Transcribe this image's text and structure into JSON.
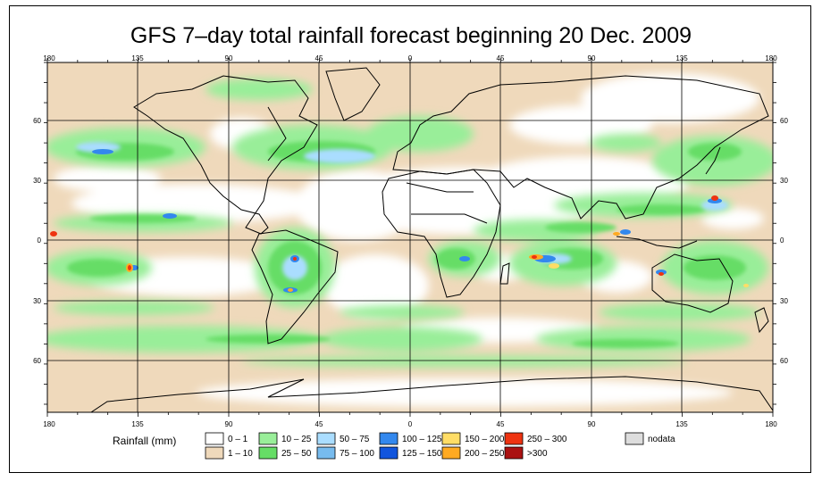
{
  "title": "GFS 7–day total rainfall forecast beginning 20 Dec. 2009",
  "axes": {
    "lon_ticks": [
      "180",
      "135",
      "90",
      "45",
      "0",
      "45",
      "90",
      "135",
      "180"
    ],
    "lat_ticks": [
      "60",
      "30",
      "0",
      "30",
      "60"
    ]
  },
  "legend": {
    "title": "Rainfall (mm)",
    "items": [
      {
        "label": "0 – 1",
        "color": "#ffffff"
      },
      {
        "label": "1 – 10",
        "color": "#efd9bb"
      },
      {
        "label": "10 – 25",
        "color": "#99ee99"
      },
      {
        "label": "25 – 50",
        "color": "#66dd66"
      },
      {
        "label": "50 – 75",
        "color": "#aaddff"
      },
      {
        "label": "75 – 100",
        "color": "#77bbee"
      },
      {
        "label": "100 – 125",
        "color": "#3388ee"
      },
      {
        "label": "125 – 150",
        "color": "#1155dd"
      },
      {
        "label": "150 – 200",
        "color": "#ffdd66"
      },
      {
        "label": "200 – 250",
        "color": "#ffaa22"
      },
      {
        "label": "250 – 300",
        "color": "#ee3311"
      },
      {
        "label": ">300",
        "color": "#aa1111"
      },
      {
        "label": "nodata",
        "color": "#dddddd"
      }
    ]
  },
  "colors": {
    "land_outline": "#000000",
    "grid": "#000000"
  }
}
